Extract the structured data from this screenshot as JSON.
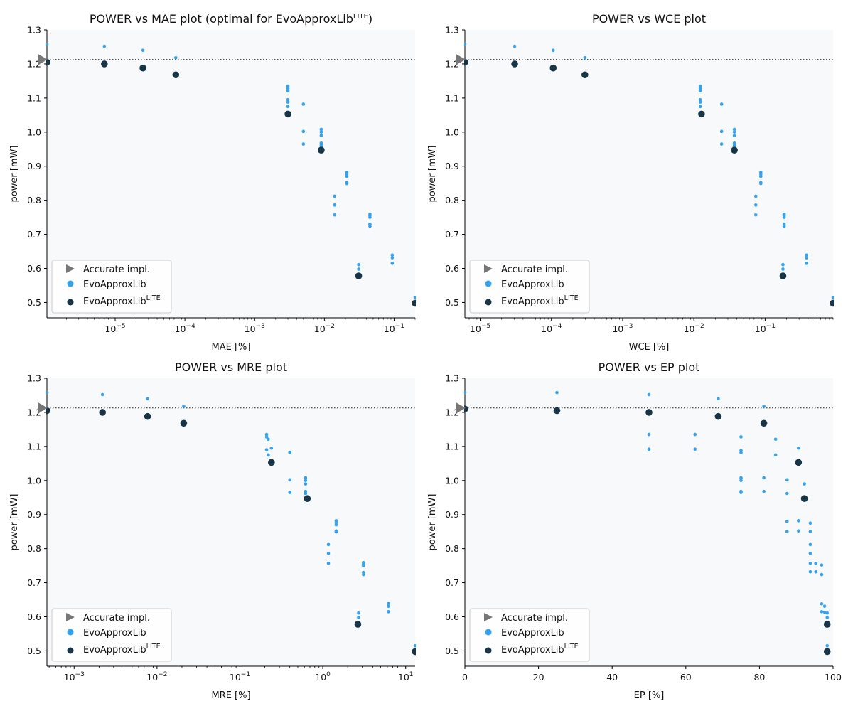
{
  "colors": {
    "accurate": "#777777",
    "evo": "#35a2ee",
    "lite": "#173547",
    "plot_bg": "#f7f9fb",
    "ref_line": "#555555"
  },
  "legend": {
    "accurate": "Accurate impl.",
    "evo": "EvoApproxLib",
    "lite_base": "EvoApproxLib",
    "lite_sup": "LITE"
  },
  "chart_data": [
    {
      "id": "mae",
      "type": "scatter",
      "title_parts": [
        "POWER vs MAE plot (optimal for EvoApproxLib",
        "LITE",
        ")"
      ],
      "xlabel": "MAE [%]",
      "ylabel": "power [mW]",
      "xscale": "log",
      "xlim": [
        1.05e-06,
        0.2
      ],
      "ylim": [
        0.455,
        1.3
      ],
      "xticks": [
        1e-05,
        0.0001,
        0.001,
        0.01,
        0.1
      ],
      "xtick_labels": [
        [
          "10",
          "−5"
        ],
        [
          "10",
          "−4"
        ],
        [
          "10",
          "−3"
        ],
        [
          "10",
          "−2"
        ],
        [
          "10",
          "−1"
        ]
      ],
      "yticks": [
        0.5,
        0.6,
        0.7,
        0.8,
        0.9,
        1.0,
        1.1,
        1.2,
        1.3
      ],
      "ytick_labels": [
        "0.5",
        "0.6",
        "0.7",
        "0.8",
        "0.9",
        "1.0",
        "1.1",
        "1.2",
        "1.3"
      ],
      "ref_power": 1.213,
      "accurate": [
        1.05e-06,
        1.213
      ],
      "evo": [
        [
          1.05e-06,
          1.258
        ],
        [
          7e-06,
          1.252
        ],
        [
          2.5e-05,
          1.24
        ],
        [
          7.4e-05,
          1.218
        ],
        [
          0.003,
          1.135
        ],
        [
          0.003,
          1.128
        ],
        [
          0.003,
          1.121
        ],
        [
          0.003,
          1.095
        ],
        [
          0.003,
          1.088
        ],
        [
          0.003,
          1.075
        ],
        [
          0.005,
          1.082
        ],
        [
          0.005,
          1.002
        ],
        [
          0.005,
          0.965
        ],
        [
          0.009,
          1.008
        ],
        [
          0.009,
          1.0
        ],
        [
          0.009,
          0.99
        ],
        [
          0.009,
          0.968
        ],
        [
          0.009,
          0.962
        ],
        [
          0.009,
          0.957
        ],
        [
          0.021,
          0.882
        ],
        [
          0.021,
          0.876
        ],
        [
          0.021,
          0.87
        ],
        [
          0.021,
          0.852
        ],
        [
          0.021,
          0.849
        ],
        [
          0.014,
          0.812
        ],
        [
          0.014,
          0.786
        ],
        [
          0.014,
          0.757
        ],
        [
          0.045,
          0.759
        ],
        [
          0.045,
          0.755
        ],
        [
          0.045,
          0.75
        ],
        [
          0.045,
          0.73
        ],
        [
          0.045,
          0.724
        ],
        [
          0.031,
          0.611
        ],
        [
          0.031,
          0.598
        ],
        [
          0.094,
          0.639
        ],
        [
          0.094,
          0.631
        ],
        [
          0.094,
          0.615
        ],
        [
          0.2,
          0.515
        ]
      ],
      "lite": [
        [
          1.05e-06,
          1.205
        ],
        [
          7e-06,
          1.2
        ],
        [
          2.5e-05,
          1.188
        ],
        [
          7.4e-05,
          1.168
        ],
        [
          0.003,
          1.053
        ],
        [
          0.009,
          0.947
        ],
        [
          0.031,
          0.578
        ],
        [
          0.2,
          0.498
        ]
      ]
    },
    {
      "id": "wce",
      "type": "scatter",
      "title_parts": [
        "POWER vs WCE plot"
      ],
      "xlabel": "WCE [%]",
      "ylabel": "power [mW]",
      "xscale": "log",
      "xlim": [
        6.1e-06,
        0.9
      ],
      "ylim": [
        0.455,
        1.3
      ],
      "xticks": [
        1e-05,
        0.0001,
        0.001,
        0.01,
        0.1
      ],
      "xtick_labels": [
        [
          "10",
          "−5"
        ],
        [
          "10",
          "−4"
        ],
        [
          "10",
          "−3"
        ],
        [
          "10",
          "−2"
        ],
        [
          "10",
          "−1"
        ]
      ],
      "yticks": [
        0.5,
        0.6,
        0.7,
        0.8,
        0.9,
        1.0,
        1.1,
        1.2,
        1.3
      ],
      "ytick_labels": [
        "0.5",
        "0.6",
        "0.7",
        "0.8",
        "0.9",
        "1.0",
        "1.1",
        "1.2",
        "1.3"
      ],
      "ref_power": 1.213,
      "accurate": [
        6.1e-06,
        1.213
      ],
      "evo": [
        [
          6.1e-06,
          1.258
        ],
        [
          3.05e-05,
          1.252
        ],
        [
          0.000106,
          1.24
        ],
        [
          0.000295,
          1.218
        ],
        [
          0.0123,
          1.135
        ],
        [
          0.0123,
          1.128
        ],
        [
          0.0123,
          1.121
        ],
        [
          0.0123,
          1.095
        ],
        [
          0.0123,
          1.088
        ],
        [
          0.0123,
          1.075
        ],
        [
          0.0245,
          1.082
        ],
        [
          0.0245,
          1.002
        ],
        [
          0.0245,
          0.965
        ],
        [
          0.037,
          1.008
        ],
        [
          0.037,
          1.0
        ],
        [
          0.037,
          0.99
        ],
        [
          0.037,
          0.968
        ],
        [
          0.037,
          0.962
        ],
        [
          0.037,
          0.957
        ],
        [
          0.087,
          0.882
        ],
        [
          0.087,
          0.876
        ],
        [
          0.087,
          0.87
        ],
        [
          0.087,
          0.852
        ],
        [
          0.087,
          0.849
        ],
        [
          0.074,
          0.812
        ],
        [
          0.074,
          0.786
        ],
        [
          0.074,
          0.757
        ],
        [
          0.185,
          0.759
        ],
        [
          0.185,
          0.755
        ],
        [
          0.185,
          0.75
        ],
        [
          0.185,
          0.73
        ],
        [
          0.185,
          0.724
        ],
        [
          0.178,
          0.611
        ],
        [
          0.178,
          0.598
        ],
        [
          0.38,
          0.639
        ],
        [
          0.38,
          0.631
        ],
        [
          0.38,
          0.615
        ],
        [
          0.9,
          0.515
        ]
      ],
      "lite": [
        [
          6.1e-06,
          1.205
        ],
        [
          3.05e-05,
          1.2
        ],
        [
          0.000106,
          1.188
        ],
        [
          0.000295,
          1.168
        ],
        [
          0.0128,
          1.053
        ],
        [
          0.037,
          0.947
        ],
        [
          0.178,
          0.578
        ],
        [
          0.9,
          0.498
        ]
      ]
    },
    {
      "id": "mre",
      "type": "scatter",
      "title_parts": [
        "POWER vs MRE plot"
      ],
      "xlabel": "MRE [%]",
      "ylabel": "power [mW]",
      "xscale": "log",
      "xlim": [
        0.00047,
        13
      ],
      "ylim": [
        0.455,
        1.3
      ],
      "xticks": [
        0.001,
        0.01,
        0.1,
        1,
        10
      ],
      "xtick_labels": [
        [
          "10",
          "−3"
        ],
        [
          "10",
          "−2"
        ],
        [
          "10",
          "−1"
        ],
        [
          "10",
          "0"
        ],
        [
          "10",
          "1"
        ]
      ],
      "yticks": [
        0.5,
        0.6,
        0.7,
        0.8,
        0.9,
        1.0,
        1.1,
        1.2,
        1.3
      ],
      "ytick_labels": [
        "0.5",
        "0.6",
        "0.7",
        "0.8",
        "0.9",
        "1.0",
        "1.1",
        "1.2",
        "1.3"
      ],
      "ref_power": 1.213,
      "accurate": [
        0.00047,
        1.213
      ],
      "evo": [
        [
          0.00047,
          1.258
        ],
        [
          0.0022,
          1.252
        ],
        [
          0.0077,
          1.24
        ],
        [
          0.021,
          1.218
        ],
        [
          0.21,
          1.135
        ],
        [
          0.21,
          1.128
        ],
        [
          0.22,
          1.121
        ],
        [
          0.24,
          1.095
        ],
        [
          0.21,
          1.09
        ],
        [
          0.22,
          1.075
        ],
        [
          0.4,
          1.082
        ],
        [
          0.4,
          1.002
        ],
        [
          0.4,
          0.965
        ],
        [
          0.62,
          1.008
        ],
        [
          0.62,
          1.0
        ],
        [
          0.62,
          0.99
        ],
        [
          0.62,
          0.968
        ],
        [
          0.62,
          0.962
        ],
        [
          1.45,
          0.882
        ],
        [
          1.45,
          0.876
        ],
        [
          1.45,
          0.87
        ],
        [
          1.45,
          0.852
        ],
        [
          1.45,
          0.849
        ],
        [
          1.17,
          0.812
        ],
        [
          1.17,
          0.786
        ],
        [
          1.17,
          0.757
        ],
        [
          3.1,
          0.759
        ],
        [
          3.1,
          0.755
        ],
        [
          3.1,
          0.75
        ],
        [
          3.1,
          0.73
        ],
        [
          3.1,
          0.724
        ],
        [
          2.7,
          0.611
        ],
        [
          2.7,
          0.598
        ],
        [
          6.2,
          0.639
        ],
        [
          6.2,
          0.631
        ],
        [
          6.2,
          0.615
        ],
        [
          13,
          0.515
        ]
      ],
      "lite": [
        [
          0.00047,
          1.205
        ],
        [
          0.0022,
          1.2
        ],
        [
          0.0077,
          1.188
        ],
        [
          0.021,
          1.168
        ],
        [
          0.24,
          1.053
        ],
        [
          0.65,
          0.947
        ],
        [
          2.65,
          0.578
        ],
        [
          13,
          0.498
        ]
      ]
    },
    {
      "id": "ep",
      "type": "scatter",
      "title_parts": [
        "POWER vs EP plot"
      ],
      "xlabel": "EP [%]",
      "ylabel": "power [mW]",
      "xscale": "linear",
      "xlim": [
        0,
        100
      ],
      "ylim": [
        0.455,
        1.3
      ],
      "xticks": [
        0,
        20,
        40,
        60,
        80,
        100
      ],
      "xtick_labels": [
        [
          "0",
          ""
        ],
        [
          "20",
          ""
        ],
        [
          "40",
          ""
        ],
        [
          "60",
          ""
        ],
        [
          "80",
          ""
        ],
        [
          "100",
          ""
        ]
      ],
      "yticks": [
        0.5,
        0.6,
        0.7,
        0.8,
        0.9,
        1.0,
        1.1,
        1.2,
        1.3
      ],
      "ytick_labels": [
        "0.5",
        "0.6",
        "0.7",
        "0.8",
        "0.9",
        "1.0",
        "1.1",
        "1.2",
        "1.3"
      ],
      "ref_power": 1.213,
      "accurate": [
        0,
        1.213
      ],
      "evo": [
        [
          0,
          1.258
        ],
        [
          25,
          1.258
        ],
        [
          50,
          1.252
        ],
        [
          50,
          1.135
        ],
        [
          50,
          1.092
        ],
        [
          62.5,
          1.135
        ],
        [
          62.5,
          1.092
        ],
        [
          68.8,
          1.24
        ],
        [
          75,
          1.128
        ],
        [
          75,
          1.088
        ],
        [
          75,
          1.082
        ],
        [
          75,
          1.008
        ],
        [
          75,
          1.0
        ],
        [
          75,
          0.968
        ],
        [
          75,
          0.965
        ],
        [
          81.2,
          1.218
        ],
        [
          81.2,
          1.008
        ],
        [
          81.2,
          0.968
        ],
        [
          84.4,
          1.121
        ],
        [
          84.4,
          1.075
        ],
        [
          87.5,
          1.002
        ],
        [
          87.5,
          0.962
        ],
        [
          87.5,
          0.88
        ],
        [
          87.5,
          0.85
        ],
        [
          90.6,
          1.095
        ],
        [
          90.6,
          0.882
        ],
        [
          90.6,
          0.852
        ],
        [
          92.2,
          0.99
        ],
        [
          93.8,
          0.875
        ],
        [
          93.8,
          0.85
        ],
        [
          93.8,
          0.812
        ],
        [
          93.8,
          0.786
        ],
        [
          93.8,
          0.757
        ],
        [
          93.8,
          0.732
        ],
        [
          95.3,
          0.757
        ],
        [
          95.3,
          0.732
        ],
        [
          96.9,
          0.752
        ],
        [
          96.9,
          0.724
        ],
        [
          96.9,
          0.638
        ],
        [
          96.9,
          0.615
        ],
        [
          97.7,
          0.631
        ],
        [
          97.7,
          0.613
        ],
        [
          98.4,
          0.611
        ],
        [
          98.4,
          0.598
        ],
        [
          98.4,
          0.515
        ]
      ],
      "lite": [
        [
          0,
          1.21
        ],
        [
          25,
          1.205
        ],
        [
          50,
          1.2
        ],
        [
          68.8,
          1.188
        ],
        [
          81.2,
          1.168
        ],
        [
          90.6,
          1.053
        ],
        [
          92.2,
          0.947
        ],
        [
          98.4,
          0.578
        ],
        [
          98.4,
          0.498
        ]
      ]
    }
  ]
}
